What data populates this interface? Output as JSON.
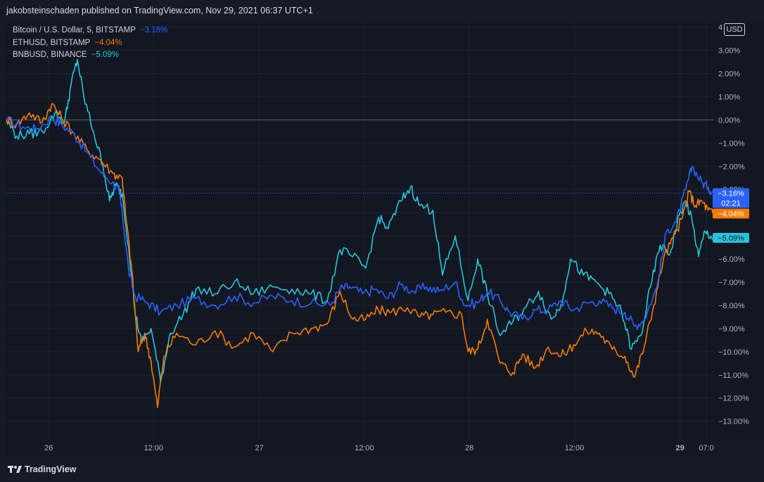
{
  "header": {
    "publisher_text": "jakobsteinschaden published on TradingView.com, Nov 29, 2021 06:37 UTC+1"
  },
  "footer": {
    "brand": "TradingView"
  },
  "currency_button": "USD",
  "colors": {
    "btc": "#2962ff",
    "eth": "#f57c00",
    "bnb": "#26c6da",
    "background": "#131722",
    "grid": "#1e222d"
  },
  "chart_data": {
    "type": "line",
    "y_unit": "%",
    "ylim": [
      -13.8,
      4.2
    ],
    "yticks": [
      "4",
      "3.00%",
      "2.00%",
      "1.00%",
      "0.00%",
      "−1.00%",
      "−2.00%",
      "−3.00%",
      "−4.00%",
      "−5.00%",
      "−6.00%",
      "−7.00%",
      "−8.00%",
      "−9.00%",
      "−10.00%",
      "−11.00%",
      "−12.00%",
      "−13.00%"
    ],
    "ytick_values": [
      4,
      3,
      2,
      1,
      0,
      -1,
      -2,
      -3,
      -4,
      -5,
      -6,
      -7,
      -8,
      -9,
      -10,
      -11,
      -12,
      -13
    ],
    "xlim": [
      -0.66,
      10.38
    ],
    "xticks": [
      {
        "label": "26",
        "x": 0,
        "bold": false
      },
      {
        "label": "12:00",
        "x": 1.64,
        "bold": false
      },
      {
        "label": "27",
        "x": 3.29,
        "bold": false
      },
      {
        "label": "12:00",
        "x": 4.93,
        "bold": false
      },
      {
        "label": "28",
        "x": 6.57,
        "bold": false
      },
      {
        "label": "12:00",
        "x": 8.21,
        "bold": false
      },
      {
        "label": "29",
        "x": 9.86,
        "bold": true
      },
      {
        "label": "07:0",
        "x": 10.27,
        "bold": false
      }
    ],
    "grid": true,
    "legend_position": "top-left",
    "series": [
      {
        "name": "Bitcoin / U.S. Dollar, 5, BITSTAMP",
        "change": "−3.16%",
        "last_value": -3.16,
        "countdown": "02:21",
        "color": "#2962ff",
        "points": [
          [
            -0.66,
            0
          ],
          [
            -0.4,
            -0.3
          ],
          [
            -0.2,
            -0.4
          ],
          [
            0.05,
            0.1
          ],
          [
            0.2,
            -0.2
          ],
          [
            0.4,
            -0.6
          ],
          [
            0.6,
            -1.4
          ],
          [
            0.8,
            -2.2
          ],
          [
            1.0,
            -2.7
          ],
          [
            1.1,
            -3.1
          ],
          [
            1.15,
            -4.0
          ],
          [
            1.25,
            -6.5
          ],
          [
            1.35,
            -7.6
          ],
          [
            1.55,
            -7.9
          ],
          [
            1.75,
            -8.3
          ],
          [
            2.0,
            -8.0
          ],
          [
            2.3,
            -7.7
          ],
          [
            2.6,
            -8.0
          ],
          [
            2.9,
            -7.6
          ],
          [
            3.2,
            -7.9
          ],
          [
            3.5,
            -7.6
          ],
          [
            3.8,
            -7.8
          ],
          [
            4.1,
            -7.9
          ],
          [
            4.4,
            -8.0
          ],
          [
            4.55,
            -7.3
          ],
          [
            4.7,
            -7.2
          ],
          [
            4.9,
            -7.5
          ],
          [
            5.1,
            -7.3
          ],
          [
            5.3,
            -7.7
          ],
          [
            5.5,
            -7.1
          ],
          [
            5.7,
            -7.4
          ],
          [
            5.9,
            -7.2
          ],
          [
            6.1,
            -7.4
          ],
          [
            6.35,
            -7.0
          ],
          [
            6.5,
            -8.0
          ],
          [
            6.7,
            -7.9
          ],
          [
            6.85,
            -7.4
          ],
          [
            7.05,
            -7.8
          ],
          [
            7.2,
            -8.3
          ],
          [
            7.4,
            -8.6
          ],
          [
            7.6,
            -8.2
          ],
          [
            7.8,
            -8.2
          ],
          [
            8.0,
            -7.8
          ],
          [
            8.2,
            -8.2
          ],
          [
            8.4,
            -7.9
          ],
          [
            8.6,
            -7.8
          ],
          [
            8.8,
            -8.1
          ],
          [
            9.0,
            -8.3
          ],
          [
            9.15,
            -8.9
          ],
          [
            9.3,
            -8.6
          ],
          [
            9.5,
            -7.2
          ],
          [
            9.65,
            -4.8
          ],
          [
            9.8,
            -4.4
          ],
          [
            9.95,
            -3.0
          ],
          [
            10.05,
            -2.0
          ],
          [
            10.2,
            -2.7
          ],
          [
            10.3,
            -2.9
          ],
          [
            10.38,
            -3.16
          ]
        ]
      },
      {
        "name": "ETHUSD, BITSTAMP",
        "change": "−4.04%",
        "last_value": -4.04,
        "color": "#f57c00",
        "points": [
          [
            -0.66,
            0
          ],
          [
            -0.5,
            -0.2
          ],
          [
            -0.3,
            0.3
          ],
          [
            -0.1,
            -0.1
          ],
          [
            0.05,
            0.7
          ],
          [
            0.2,
            0.1
          ],
          [
            0.4,
            -0.6
          ],
          [
            0.6,
            -1.3
          ],
          [
            0.8,
            -1.7
          ],
          [
            1.0,
            -2.3
          ],
          [
            1.15,
            -2.5
          ],
          [
            1.2,
            -4.0
          ],
          [
            1.3,
            -6.5
          ],
          [
            1.4,
            -10.0
          ],
          [
            1.5,
            -9.2
          ],
          [
            1.6,
            -10.4
          ],
          [
            1.7,
            -12.4
          ],
          [
            1.8,
            -10.2
          ],
          [
            2.0,
            -9.2
          ],
          [
            2.3,
            -9.7
          ],
          [
            2.6,
            -9.1
          ],
          [
            2.9,
            -9.8
          ],
          [
            3.2,
            -9.2
          ],
          [
            3.5,
            -10.0
          ],
          [
            3.8,
            -9.2
          ],
          [
            4.1,
            -9.0
          ],
          [
            4.35,
            -8.8
          ],
          [
            4.55,
            -7.4
          ],
          [
            4.75,
            -8.6
          ],
          [
            4.95,
            -8.6
          ],
          [
            5.15,
            -8.2
          ],
          [
            5.35,
            -8.3
          ],
          [
            5.6,
            -8.1
          ],
          [
            5.8,
            -8.5
          ],
          [
            6.0,
            -8.4
          ],
          [
            6.2,
            -8.3
          ],
          [
            6.45,
            -8.4
          ],
          [
            6.55,
            -10.0
          ],
          [
            6.7,
            -9.9
          ],
          [
            6.85,
            -8.6
          ],
          [
            7.05,
            -10.5
          ],
          [
            7.25,
            -10.9
          ],
          [
            7.4,
            -10.1
          ],
          [
            7.6,
            -10.7
          ],
          [
            7.8,
            -9.8
          ],
          [
            8.0,
            -10.2
          ],
          [
            8.2,
            -9.7
          ],
          [
            8.4,
            -9.1
          ],
          [
            8.6,
            -9.2
          ],
          [
            8.8,
            -9.9
          ],
          [
            9.0,
            -10.2
          ],
          [
            9.15,
            -11.1
          ],
          [
            9.3,
            -9.8
          ],
          [
            9.45,
            -8.0
          ],
          [
            9.6,
            -6.0
          ],
          [
            9.75,
            -5.1
          ],
          [
            9.9,
            -4.2
          ],
          [
            10.0,
            -3.1
          ],
          [
            10.1,
            -3.7
          ],
          [
            10.2,
            -3.5
          ],
          [
            10.3,
            -3.9
          ],
          [
            10.38,
            -4.04
          ]
        ]
      },
      {
        "name": "BNBUSD, BINANCE",
        "change": "−5.09%",
        "last_value": -5.09,
        "color": "#26c6da",
        "points": [
          [
            -0.66,
            0
          ],
          [
            -0.5,
            -0.7
          ],
          [
            -0.3,
            -0.6
          ],
          [
            -0.1,
            -0.5
          ],
          [
            0.1,
            0.3
          ],
          [
            0.25,
            -0.1
          ],
          [
            0.35,
            1.5
          ],
          [
            0.45,
            2.6
          ],
          [
            0.55,
            1.0
          ],
          [
            0.7,
            -0.5
          ],
          [
            0.85,
            -2.0
          ],
          [
            0.95,
            -3.5
          ],
          [
            1.05,
            -2.8
          ],
          [
            1.15,
            -3.2
          ],
          [
            1.25,
            -5.5
          ],
          [
            1.35,
            -8.3
          ],
          [
            1.45,
            -9.6
          ],
          [
            1.6,
            -9.0
          ],
          [
            1.75,
            -11.3
          ],
          [
            1.9,
            -9.2
          ],
          [
            2.1,
            -8.4
          ],
          [
            2.3,
            -7.3
          ],
          [
            2.6,
            -7.5
          ],
          [
            2.9,
            -7.0
          ],
          [
            3.2,
            -7.5
          ],
          [
            3.5,
            -7.2
          ],
          [
            3.8,
            -7.3
          ],
          [
            4.1,
            -7.5
          ],
          [
            4.35,
            -7.8
          ],
          [
            4.55,
            -5.6
          ],
          [
            4.75,
            -5.9
          ],
          [
            4.95,
            -6.4
          ],
          [
            5.15,
            -4.2
          ],
          [
            5.3,
            -4.7
          ],
          [
            5.5,
            -3.5
          ],
          [
            5.65,
            -2.9
          ],
          [
            5.8,
            -3.7
          ],
          [
            6.0,
            -3.9
          ],
          [
            6.15,
            -6.7
          ],
          [
            6.35,
            -5.0
          ],
          [
            6.55,
            -7.8
          ],
          [
            6.7,
            -6.0
          ],
          [
            6.85,
            -7.5
          ],
          [
            7.05,
            -9.3
          ],
          [
            7.25,
            -8.7
          ],
          [
            7.45,
            -8.1
          ],
          [
            7.65,
            -7.4
          ],
          [
            7.85,
            -8.6
          ],
          [
            8.0,
            -8.0
          ],
          [
            8.15,
            -6.0
          ],
          [
            8.35,
            -6.7
          ],
          [
            8.55,
            -7.0
          ],
          [
            8.75,
            -7.5
          ],
          [
            8.95,
            -8.3
          ],
          [
            9.1,
            -9.9
          ],
          [
            9.25,
            -9.3
          ],
          [
            9.4,
            -7.2
          ],
          [
            9.55,
            -5.4
          ],
          [
            9.7,
            -5.8
          ],
          [
            9.85,
            -4.1
          ],
          [
            9.95,
            -3.5
          ],
          [
            10.05,
            -4.4
          ],
          [
            10.15,
            -5.9
          ],
          [
            10.25,
            -4.8
          ],
          [
            10.38,
            -5.09
          ]
        ]
      }
    ]
  }
}
